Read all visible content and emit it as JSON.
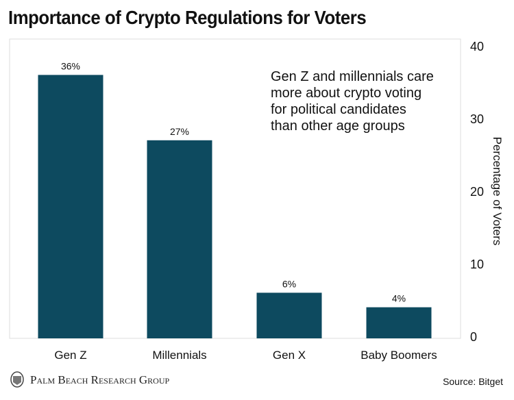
{
  "chart_data": {
    "type": "bar",
    "title": "Importance of Crypto Regulations for Voters",
    "categories": [
      "Gen Z",
      "Millennials",
      "Gen X",
      "Baby Boomers"
    ],
    "values": [
      36,
      27,
      6,
      4
    ],
    "data_labels": [
      "36%",
      "27%",
      "6%",
      "4%"
    ],
    "xlabel": "",
    "ylabel": "Percentage of Voters",
    "ylim": [
      0,
      40
    ],
    "yticks": [
      0,
      10,
      20,
      30,
      40
    ],
    "y_axis_side": "right",
    "grid": false,
    "bar_color": "#0d4a5f",
    "annotation": [
      "Gen Z and millennials care",
      "more about crypto voting",
      "for political candidates",
      "than other age groups"
    ]
  },
  "footer": {
    "brand": "Palm Beach Research Group",
    "source": "Source: Bitget"
  }
}
